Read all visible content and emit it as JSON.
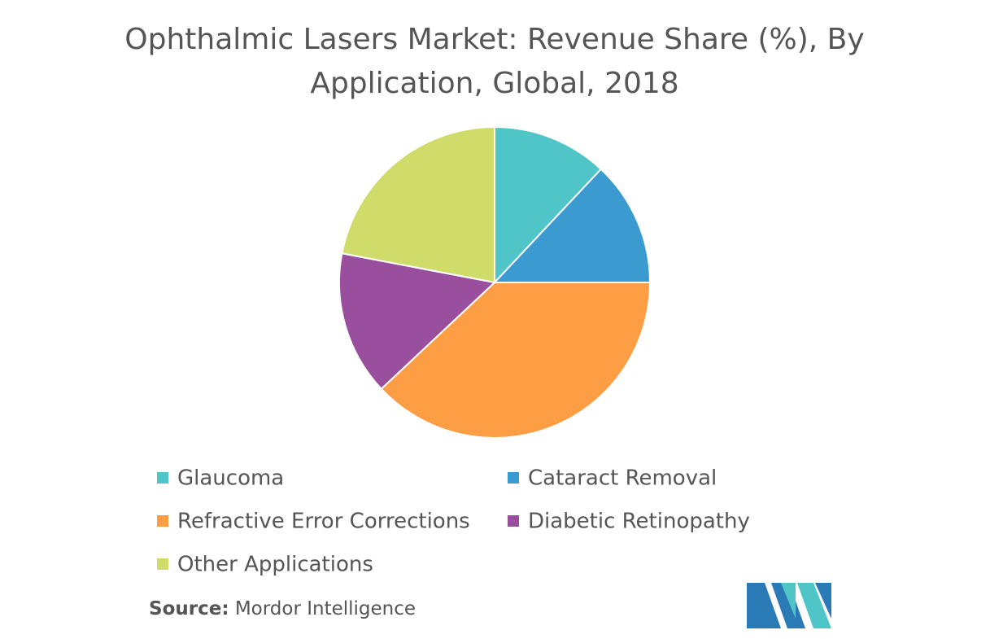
{
  "chart_data": {
    "type": "pie",
    "title": "Ophthalmic Lasers Market: Revenue Share (%), By Application, Global, 2018",
    "categories": [
      "Glaucoma",
      "Cataract Removal",
      "Refractive Error Corrections",
      "Diabetic Retinopathy",
      "Other Applications"
    ],
    "values": [
      12,
      13,
      38,
      15,
      22
    ],
    "colors": [
      "#4fc5c7",
      "#3b9bd0",
      "#fd9e45",
      "#9a4e9e",
      "#d0dc6a"
    ],
    "legend": "bottom"
  },
  "source": {
    "label": "Source:",
    "text": "Mordor Intelligence"
  }
}
